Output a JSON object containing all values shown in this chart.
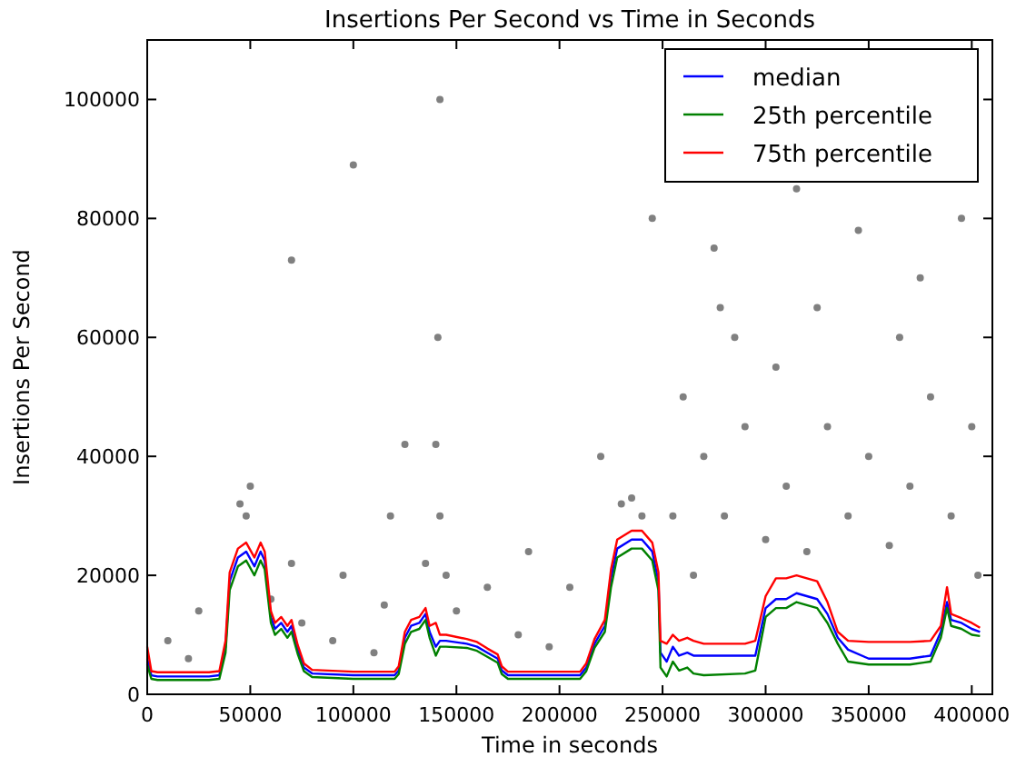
{
  "chart_data": {
    "type": "line",
    "title": "Insertions Per Second vs Time in Seconds",
    "xlabel": "Time in seconds",
    "ylabel": "Insertions Per Second",
    "xlim": [
      0,
      410000
    ],
    "xticks": [
      0,
      50000,
      100000,
      150000,
      200000,
      250000,
      300000,
      350000,
      400000
    ],
    "ylim": [
      0,
      110000
    ],
    "yticks": [
      0,
      20000,
      40000,
      60000,
      80000,
      100000
    ],
    "grid": false,
    "legend": "top right",
    "marker": "none",
    "line_style": "solid",
    "x": [
      0,
      2000,
      5000,
      30000,
      35000,
      38000,
      40000,
      44000,
      48000,
      52000,
      55000,
      57000,
      60000,
      62000,
      65000,
      68000,
      70000,
      73000,
      76000,
      80000,
      100000,
      120000,
      122000,
      125000,
      128000,
      132000,
      135000,
      137000,
      140000,
      142000,
      145000,
      155000,
      160000,
      165000,
      170000,
      172000,
      175000,
      200000,
      210000,
      213000,
      217000,
      222000,
      225000,
      228000,
      235000,
      240000,
      245000,
      248000,
      249000,
      252000,
      255000,
      258000,
      262000,
      265000,
      270000,
      290000,
      295000,
      300000,
      305000,
      310000,
      315000,
      320000,
      325000,
      330000,
      335000,
      340000,
      350000,
      370000,
      380000,
      385000,
      388000,
      390000,
      395000,
      400000,
      404000
    ],
    "series": [
      {
        "type": "scatter",
        "marker": "circle",
        "color": "#808080",
        "x": [
          10000,
          20000,
          25000,
          45000,
          48000,
          60000,
          70000,
          75000,
          90000,
          95000,
          110000,
          115000,
          118000,
          125000,
          135000,
          140000,
          141000,
          142000,
          142000,
          145000,
          150000,
          165000,
          180000,
          185000,
          195000,
          205000,
          220000,
          230000,
          235000,
          240000,
          245000,
          255000,
          260000,
          265000,
          270000,
          275000,
          278000,
          280000,
          285000,
          290000,
          300000,
          305000,
          310000,
          315000,
          320000,
          325000,
          330000,
          340000,
          345000,
          350000,
          360000,
          365000,
          370000,
          375000,
          380000,
          390000,
          395000,
          400000,
          403000,
          100000,
          50000,
          70000
        ],
        "values": [
          9000,
          6000,
          14000,
          32000,
          30000,
          16000,
          22000,
          12000,
          9000,
          20000,
          7000,
          15000,
          30000,
          42000,
          22000,
          42000,
          60000,
          30000,
          100000,
          20000,
          14000,
          18000,
          10000,
          24000,
          8000,
          18000,
          40000,
          32000,
          33000,
          30000,
          80000,
          30000,
          50000,
          20000,
          40000,
          75000,
          65000,
          30000,
          60000,
          45000,
          26000,
          55000,
          35000,
          85000,
          24000,
          65000,
          45000,
          30000,
          78000,
          40000,
          25000,
          60000,
          35000,
          70000,
          50000,
          30000,
          80000,
          45000,
          20000,
          89000,
          35000,
          73000
        ]
      },
      {
        "name": "median",
        "color": "#0000ff",
        "values": [
          6000,
          3200,
          3000,
          3000,
          3200,
          8000,
          19000,
          23000,
          24000,
          21500,
          24000,
          22500,
          13000,
          11000,
          12000,
          10500,
          11500,
          7500,
          4500,
          3500,
          3200,
          3200,
          4000,
          9500,
          11500,
          12000,
          13500,
          10500,
          8000,
          9000,
          9000,
          8500,
          8000,
          7000,
          6000,
          4000,
          3200,
          3200,
          3200,
          4500,
          8500,
          11500,
          19500,
          24500,
          26000,
          26000,
          24000,
          19000,
          7000,
          5500,
          8000,
          6500,
          7000,
          6500,
          6500,
          6500,
          6500,
          14500,
          16000,
          16000,
          17000,
          16500,
          16000,
          13500,
          9500,
          7500,
          6000,
          6000,
          6500,
          10500,
          15500,
          12500,
          12000,
          11000,
          10500
        ]
      },
      {
        "name": "25th percentile",
        "color": "#008000",
        "values": [
          5000,
          2600,
          2400,
          2400,
          2600,
          7000,
          17500,
          21500,
          22500,
          20000,
          22500,
          21000,
          12000,
          10000,
          11000,
          9500,
          10500,
          6800,
          3900,
          2900,
          2600,
          2600,
          3400,
          8500,
          10500,
          11000,
          12500,
          9500,
          6500,
          8000,
          8000,
          7800,
          7300,
          6300,
          5300,
          3400,
          2600,
          2600,
          2600,
          3900,
          7800,
          10500,
          18000,
          23000,
          24500,
          24500,
          22500,
          17500,
          4500,
          3000,
          5500,
          4000,
          4500,
          3500,
          3200,
          3500,
          4000,
          13000,
          14500,
          14500,
          15500,
          15000,
          14500,
          12000,
          8500,
          5500,
          5000,
          5000,
          5500,
          9500,
          14500,
          11500,
          11000,
          10000,
          9800
        ]
      },
      {
        "name": "75th percentile",
        "color": "#ff0000",
        "values": [
          8000,
          3900,
          3700,
          3700,
          3900,
          9000,
          20500,
          24500,
          25500,
          23000,
          25500,
          24000,
          14000,
          12000,
          13000,
          11500,
          12500,
          8300,
          5200,
          4100,
          3800,
          3800,
          4700,
          10500,
          12500,
          13000,
          14500,
          11500,
          12000,
          10000,
          10000,
          9300,
          8800,
          7700,
          6700,
          4700,
          3800,
          3800,
          3800,
          5200,
          9300,
          12500,
          21000,
          26000,
          27500,
          27500,
          25500,
          20500,
          9000,
          8500,
          10000,
          9000,
          9500,
          9000,
          8500,
          8500,
          9000,
          16500,
          19500,
          19500,
          20000,
          19500,
          19000,
          15500,
          10500,
          9000,
          8800,
          8800,
          9000,
          11500,
          18000,
          13500,
          12800,
          12000,
          11200
        ]
      }
    ]
  }
}
